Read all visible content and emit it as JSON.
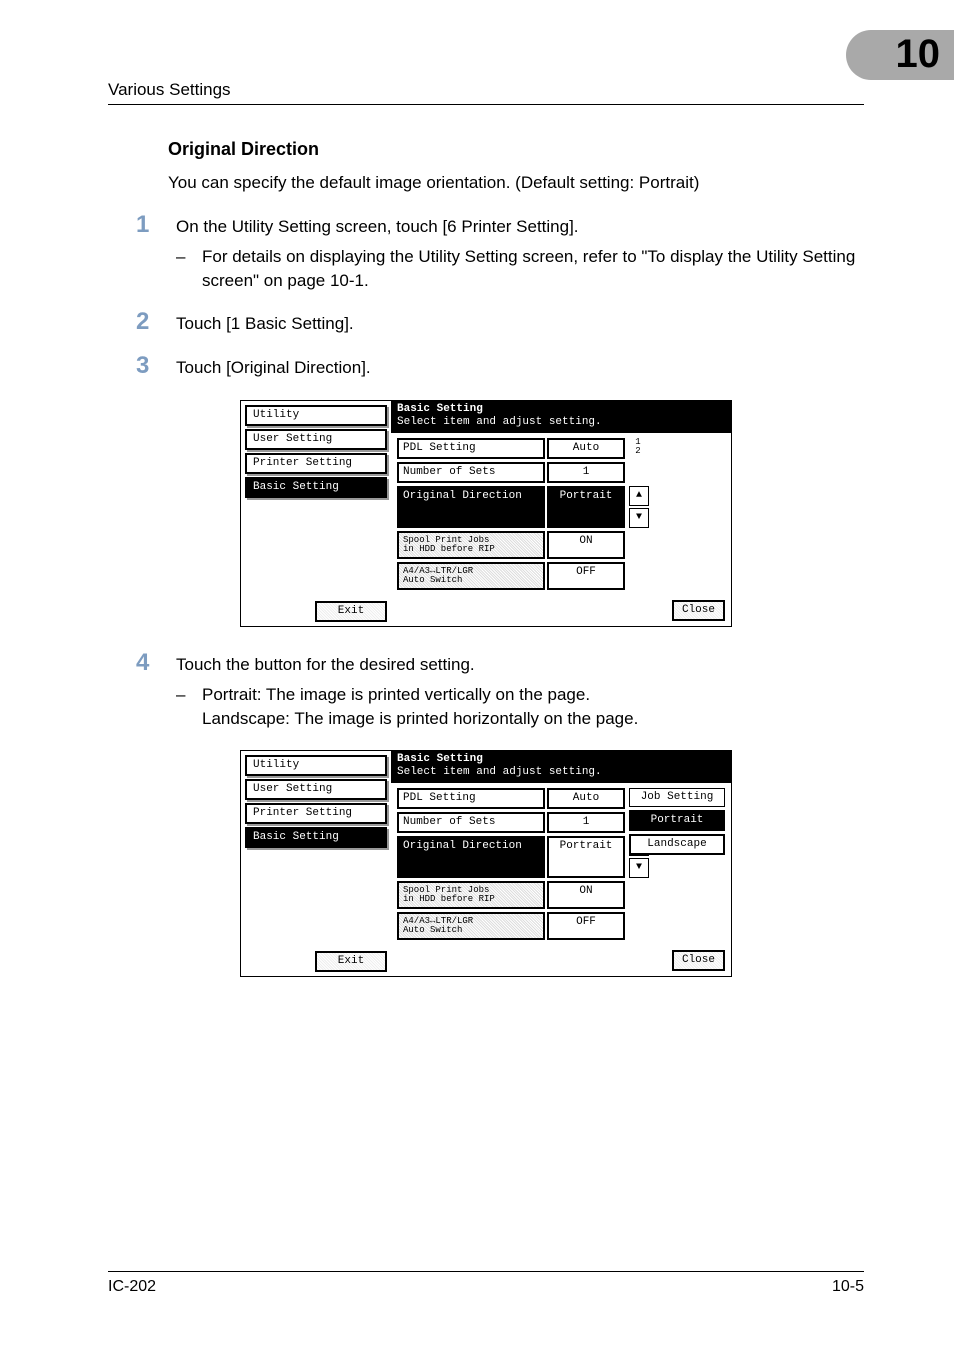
{
  "header": {
    "running_title": "Various Settings",
    "chapter_number": "10",
    "tab_color": "#a9a9a9"
  },
  "section": {
    "title": "Original Direction",
    "intro": "You can specify the default image orientation. (Default setting: Portrait)"
  },
  "steps": [
    {
      "text": "On the Utility Setting screen, touch [6 Printer Setting].",
      "sub": "For details on displaying the Utility Setting screen, refer to \"To display the Utility Setting screen\" on page 10-1."
    },
    {
      "text": "Touch [1 Basic Setting]."
    },
    {
      "text": "Touch [Original Direction]."
    },
    {
      "text": "Touch the button for the desired setting.",
      "sub": "Portrait: The image is printed vertically on the page.\nLandscape: The image is printed horizontally on the page."
    }
  ],
  "step_number_color": "#7d9cc0",
  "lcd_common": {
    "title": "Basic Setting",
    "subtitle": "Select item and adjust setting.",
    "left_items": {
      "utility": "Utility",
      "user_setting": "User Setting",
      "printer_setting": "Printer Setting",
      "basic_setting": "Basic Setting"
    },
    "exit_label": "Exit",
    "close_label": "Close",
    "page_indicator": "1\n2",
    "rows": {
      "pdl": {
        "label": "PDL Setting",
        "value": "Auto"
      },
      "sets": {
        "label": "Number of Sets",
        "value": "1"
      },
      "dir": {
        "label": "Original Direction",
        "value": "Portrait"
      },
      "spool": {
        "label": "Spool Print Jobs\nin HDD before RIP",
        "value": "ON"
      },
      "a4": {
        "label": "A4/A3↔LTR/LGR\nAuto Switch",
        "value": "OFF"
      }
    }
  },
  "lcd2_options": {
    "heading": "Job Setting",
    "portrait": "Portrait",
    "landscape": "Landscape"
  },
  "footer": {
    "left": "IC-202",
    "right": "10-5"
  }
}
